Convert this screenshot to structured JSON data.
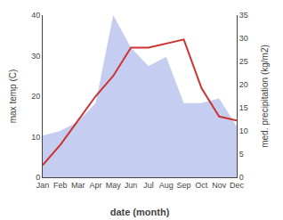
{
  "chart_data": {
    "type": "line",
    "categories": [
      "Jan",
      "Feb",
      "Mar",
      "Apr",
      "May",
      "Jun",
      "Jul",
      "Aug",
      "Sep",
      "Oct",
      "Nov",
      "Dec"
    ],
    "series": [
      {
        "type": "area",
        "color": "#c5cef0",
        "axis": "y2",
        "values": [
          9,
          10,
          12,
          16,
          35,
          28,
          24,
          26,
          16,
          16,
          17,
          11
        ]
      },
      {
        "type": "line",
        "color": "#cc3333",
        "values": [
          3,
          8,
          14,
          20,
          25,
          32,
          32,
          33,
          34,
          22,
          15,
          14
        ]
      }
    ],
    "xlabel": "date (month)",
    "ylabel": "max temp (C)",
    "y2label": "med. precipitation (kg/m2)",
    "ylim": [
      0,
      40
    ],
    "yticks": [
      0,
      10,
      20,
      30,
      40
    ],
    "y2lim": [
      0,
      35
    ],
    "y2ticks": [
      0,
      5,
      10,
      15,
      20,
      25,
      30,
      35
    ],
    "grid": false
  }
}
